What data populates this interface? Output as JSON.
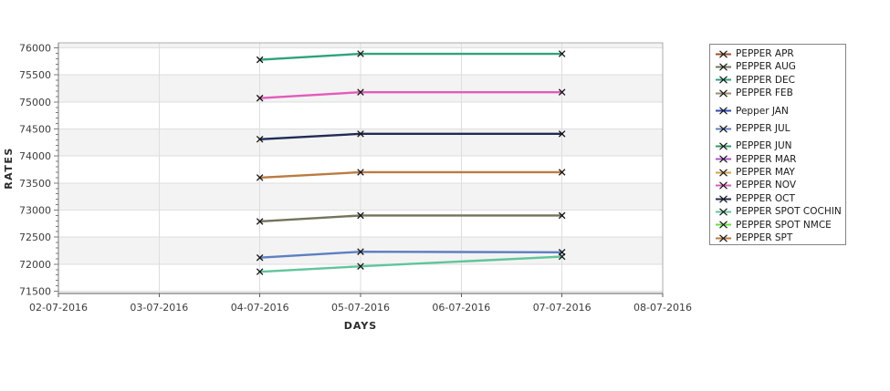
{
  "chart_data": {
    "type": "line",
    "title": "",
    "xlabel": "DAYS",
    "ylabel": "RATES",
    "x_tick_labels": [
      "02-07-2016",
      "03-07-2016",
      "04-07-2016",
      "05-07-2016",
      "06-07-2016",
      "07-07-2016",
      "08-07-2016"
    ],
    "y_ticks": [
      71500,
      72000,
      72500,
      73000,
      73500,
      74000,
      74500,
      75000,
      75500,
      76000
    ],
    "ylim": [
      71500,
      76000
    ],
    "y_minor_step": 100,
    "grid": true,
    "plot_bands": "alternating-gray-every-500",
    "legend_position": "right",
    "marker": "x",
    "data_x": [
      "04-07-2016",
      "05-07-2016",
      "07-07-2016"
    ],
    "series": [
      {
        "name": "PEPPER APR",
        "color": "#A05228",
        "values": []
      },
      {
        "name": "PEPPER AUG",
        "color": "#73735C",
        "values": [
          72790,
          72900,
          72900
        ]
      },
      {
        "name": "PEPPER DEC",
        "color": "#2EA27C",
        "values": [
          75780,
          75890,
          75890
        ]
      },
      {
        "name": "PEPPER FEB",
        "color": "#998C74",
        "values": []
      },
      {
        "name": "Pepper JAN",
        "color": "#2D49BE",
        "values": []
      },
      {
        "name": "PEPPER JUL",
        "color": "#5E7FC0",
        "values": [
          72120,
          72230,
          72220
        ]
      },
      {
        "name": "PEPPER JUN",
        "color": "#2F9965",
        "values": []
      },
      {
        "name": "PEPPER MAR",
        "color": "#AA55C8",
        "values": []
      },
      {
        "name": "PEPPER MAY",
        "color": "#D3A440",
        "values": []
      },
      {
        "name": "PEPPER NOV",
        "color": "#E25BBB",
        "values": [
          75070,
          75180,
          75180
        ]
      },
      {
        "name": "PEPPER OCT",
        "color": "#1F2C55",
        "values": [
          74310,
          74410,
          74410
        ]
      },
      {
        "name": "PEPPER SPOT COCHIN",
        "color": "#5FC59A",
        "values": [
          71860,
          71960,
          72140
        ]
      },
      {
        "name": "PEPPER SPOT NMCE",
        "color": "#5FE53C",
        "values": []
      },
      {
        "name": "PEPPER SPT",
        "color": "#BA7B40",
        "values": [
          73600,
          73700,
          73700
        ]
      }
    ],
    "colors": {
      "band": "#F3F3F3",
      "grid": "#DEDEDE",
      "axis": "#7A7A7A",
      "bottom_axis": "#5E5E5E",
      "border": "#ABABAB",
      "tick_label": "#3C3C3C",
      "marker": "#141414"
    }
  }
}
